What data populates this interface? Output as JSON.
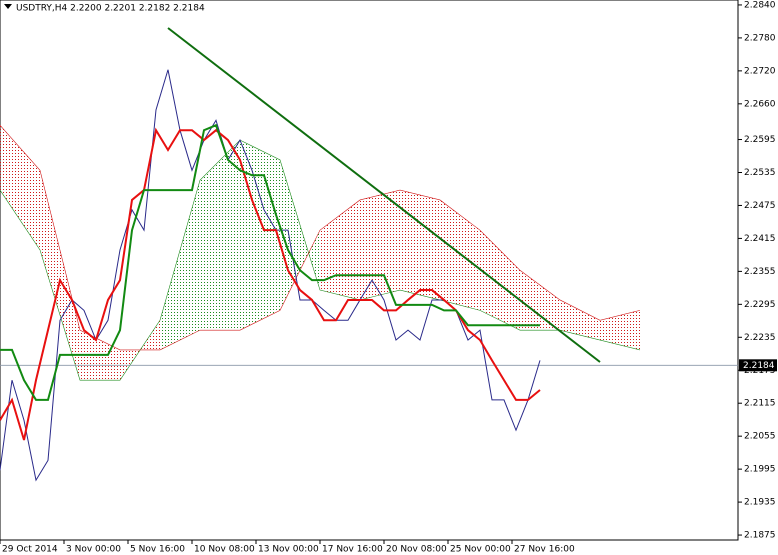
{
  "chart_data": {
    "type": "line",
    "title": "USDTRY,H4  2.2200 2.2201 2.2182 2.2184",
    "xlim": [
      0,
      184.5
    ],
    "ylim": [
      2.1866,
      2.2849
    ],
    "xticks": [
      {
        "value": 0,
        "label": "29 Oct 2014"
      },
      {
        "value": 16,
        "label": "3 Nov 00:00"
      },
      {
        "value": 32,
        "label": "5 Nov 16:00"
      },
      {
        "value": 48,
        "label": "10 Nov 08:00"
      },
      {
        "value": 64,
        "label": "13 Nov 00:00"
      },
      {
        "value": 80,
        "label": "17 Nov 16:00"
      },
      {
        "value": 96,
        "label": "20 Nov 08:00"
      },
      {
        "value": 112,
        "label": "25 Nov 00:00"
      },
      {
        "value": 128,
        "label": "27 Nov 16:00"
      }
    ],
    "yticks": [
      {
        "value": 2.284,
        "label": "2.2840"
      },
      {
        "value": 2.278,
        "label": "2.2780"
      },
      {
        "value": 2.272,
        "label": "2.2720"
      },
      {
        "value": 2.266,
        "label": "2.2660"
      },
      2.2595,
      2.2535,
      2.2475,
      2.2415,
      2.2355,
      2.2295,
      2.2235,
      2.2175,
      2.2115,
      2.2055,
      2.1995,
      2.1935,
      2.1875
    ],
    "series": [
      {
        "color": "#2a2a8a",
        "x": [
          0,
          3,
          6,
          9,
          12,
          15,
          18,
          21,
          24,
          27,
          30,
          33,
          36,
          39,
          42,
          45,
          48,
          51,
          54,
          57,
          60,
          63,
          66,
          69,
          72,
          75,
          78,
          81,
          84,
          87,
          90,
          93,
          96,
          99,
          102,
          105,
          108,
          111,
          114,
          117,
          120,
          123,
          126,
          129,
          132,
          135
        ],
        "values": [
          2.1993,
          2.2157,
          2.2084,
          2.1975,
          2.2011,
          2.2266,
          2.2303,
          2.2284,
          2.223,
          2.2266,
          2.2394,
          2.2467,
          2.243,
          2.2649,
          2.2722,
          2.2612,
          2.2539,
          2.2594,
          2.263,
          2.2558,
          2.2594,
          2.2539,
          2.2467,
          2.243,
          2.243,
          2.2303,
          2.2303,
          2.2284,
          2.2266,
          2.2266,
          2.2303,
          2.2339,
          2.2303,
          2.223,
          2.2248,
          2.223,
          2.2303,
          2.2303,
          2.2284,
          2.223,
          2.2248,
          2.2121,
          2.2121,
          2.2066,
          2.2121,
          2.2193
        ]
      },
      {
        "color": "#e81010",
        "x": [
          0,
          3,
          6,
          9,
          12,
          15,
          18,
          21,
          24,
          27,
          30,
          33,
          36,
          39,
          42,
          45,
          48,
          51,
          54,
          57,
          60,
          63,
          66,
          69,
          72,
          75,
          78,
          81,
          84,
          87,
          90,
          93,
          96,
          99,
          102,
          105,
          108,
          111,
          114,
          117,
          120,
          123,
          126,
          129,
          132,
          135
        ],
        "values": [
          2.2084,
          2.2121,
          2.2048,
          2.2157,
          2.2248,
          2.2339,
          2.2303,
          2.2248,
          2.223,
          2.2303,
          2.2339,
          2.2485,
          2.2503,
          2.2612,
          2.2576,
          2.2612,
          2.2612,
          2.2594,
          2.2612,
          2.2594,
          2.2558,
          2.2485,
          2.243,
          2.243,
          2.2357,
          2.2321,
          2.2303,
          2.2266,
          2.2266,
          2.2303,
          2.2303,
          2.2303,
          2.2284,
          2.2284,
          2.2303,
          2.2321,
          2.2321,
          2.2303,
          2.2284,
          2.2248,
          2.223,
          2.2193,
          2.2157,
          2.2121,
          2.2121,
          2.2139
        ]
      },
      {
        "color": "#128a12",
        "x": [
          0,
          3,
          6,
          9,
          12,
          15,
          18,
          21,
          24,
          27,
          30,
          33,
          36,
          39,
          42,
          45,
          48,
          51,
          54,
          57,
          60,
          63,
          66,
          69,
          72,
          75,
          78,
          81,
          84,
          87,
          90,
          93,
          96,
          99,
          102,
          105,
          108,
          111,
          114,
          117,
          120,
          123,
          126,
          129,
          132,
          135
        ],
        "values": [
          2.2212,
          2.2212,
          2.2157,
          2.2121,
          2.2121,
          2.2203,
          2.2203,
          2.2203,
          2.2203,
          2.2203,
          2.2248,
          2.243,
          2.2503,
          2.2503,
          2.2503,
          2.2503,
          2.2503,
          2.2612,
          2.2621,
          2.2558,
          2.2539,
          2.253,
          2.253,
          2.2458,
          2.2394,
          2.2357,
          2.2339,
          2.2339,
          2.2348,
          2.2348,
          2.2348,
          2.2348,
          2.2348,
          2.2294,
          2.2294,
          2.2294,
          2.2294,
          2.2284,
          2.2284,
          2.2257,
          2.2257,
          2.2257,
          2.2257,
          2.2257,
          2.2257,
          2.2257
        ]
      }
    ],
    "cloud": {
      "x": [
        0,
        10,
        20,
        30,
        40,
        50,
        60,
        70,
        80,
        90,
        100,
        110,
        120,
        130,
        140,
        150,
        160
      ],
      "span_a": [
        2.2503,
        2.2394,
        2.2157,
        2.2157,
        2.2266,
        2.2521,
        2.2594,
        2.2558,
        2.2321,
        2.2303,
        2.2321,
        2.2303,
        2.2284,
        2.2248,
        2.2248,
        2.223,
        2.2212
      ],
      "span_b": [
        2.2621,
        2.2539,
        2.2248,
        2.2212,
        2.2212,
        2.2248,
        2.2248,
        2.2284,
        2.243,
        2.2485,
        2.2503,
        2.2485,
        2.243,
        2.2357,
        2.2303,
        2.2266,
        2.2284
      ],
      "up_color": "#1e8c1e",
      "down_color": "#d01818"
    },
    "trendline": {
      "x": [
        42,
        150
      ],
      "values": [
        2.2798,
        2.219
      ],
      "color": "#0f6e0f"
    },
    "current_price": 2.2184
  }
}
